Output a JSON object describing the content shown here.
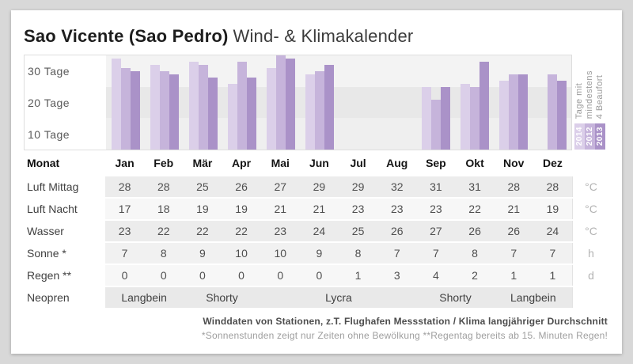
{
  "header": {
    "title_bold": "Sao Vicente (Sao Pedro)",
    "title_light": "Wind- & Klimakalender"
  },
  "chart_data": {
    "type": "bar",
    "title": "Tage mit mindestens 4 Beaufort",
    "categories": [
      "Jan",
      "Feb",
      "Mär",
      "Apr",
      "Mai",
      "Jun",
      "Jul",
      "Aug",
      "Sep",
      "Okt",
      "Nov",
      "Dez"
    ],
    "ylabel_lines": [
      "Tage mit",
      "mindestens",
      "4 Beaufort"
    ],
    "ytick_labels": [
      "30 Tage",
      "20 Tage",
      "10 Tage"
    ],
    "ylim": [
      0,
      30
    ],
    "grid": "banded",
    "legend_position": "right",
    "series": [
      {
        "name": "2014",
        "color": "#dbcfe9",
        "values": [
          29,
          27,
          28,
          21,
          26,
          24,
          null,
          null,
          20,
          21,
          22,
          null
        ]
      },
      {
        "name": "2012",
        "color": "#c6b4db",
        "values": [
          26,
          25,
          27,
          28,
          30,
          25,
          null,
          null,
          16,
          20,
          24,
          24
        ]
      },
      {
        "name": "2013",
        "color": "#aa92c8",
        "values": [
          25,
          24,
          23,
          23,
          29,
          27,
          null,
          null,
          20,
          28,
          24,
          22
        ]
      }
    ]
  },
  "table": {
    "month_row_label": "Monat",
    "months": [
      "Jan",
      "Feb",
      "Mär",
      "Apr",
      "Mai",
      "Jun",
      "Jul",
      "Aug",
      "Sep",
      "Okt",
      "Nov",
      "Dez"
    ],
    "rows": [
      {
        "label": "Luft Mittag",
        "unit": "°C",
        "values": [
          28,
          28,
          25,
          26,
          27,
          29,
          29,
          32,
          31,
          31,
          28,
          28
        ]
      },
      {
        "label": "Luft Nacht",
        "unit": "°C",
        "values": [
          17,
          18,
          19,
          19,
          21,
          21,
          23,
          23,
          23,
          22,
          21,
          19
        ]
      },
      {
        "label": "Wasser",
        "unit": "°C",
        "values": [
          23,
          22,
          22,
          22,
          23,
          24,
          25,
          26,
          27,
          26,
          26,
          24
        ]
      },
      {
        "label": "Sonne *",
        "unit": "h",
        "values": [
          7,
          8,
          9,
          10,
          10,
          9,
          8,
          7,
          7,
          8,
          7,
          7
        ]
      },
      {
        "label": "Regen **",
        "unit": "d",
        "values": [
          0,
          0,
          0,
          0,
          0,
          0,
          1,
          3,
          4,
          2,
          1,
          1
        ]
      }
    ],
    "neopren_row": {
      "label": "Neopren",
      "segments": [
        {
          "label": "Langbein",
          "span": 2
        },
        {
          "label": "Shorty",
          "span": 2
        },
        {
          "label": "Lycra",
          "span": 4
        },
        {
          "label": "Shorty",
          "span": 2
        },
        {
          "label": "Langbein",
          "span": 2
        }
      ]
    }
  },
  "footer": {
    "line1": "Winddaten von Stationen, z.T. Flughafen Messstation / Klima langjähriger Durchschnitt",
    "line2": "*Sonnenstunden zeigt nur Zeiten ohne Bewölkung  **Regentag bereits ab 15. Minuten Regen!"
  }
}
